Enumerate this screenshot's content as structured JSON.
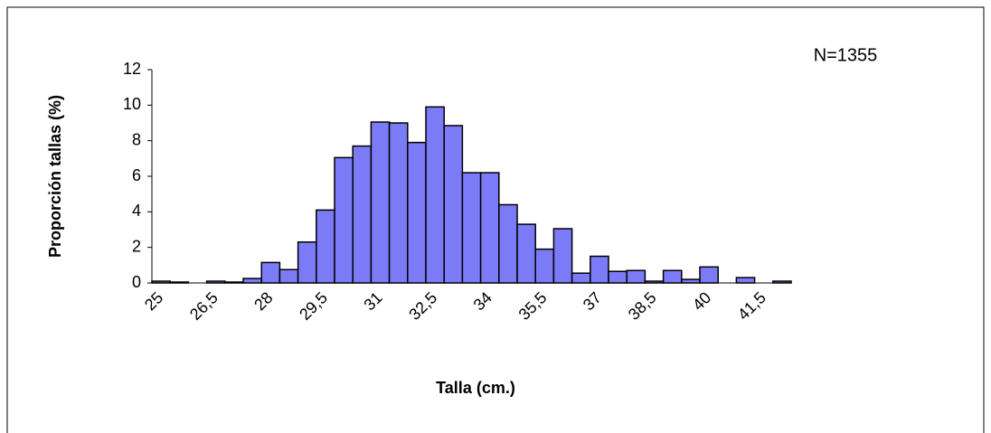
{
  "chart_data": {
    "type": "bar",
    "annotation": "N=1355",
    "y_label": "Proporción tallas (%)",
    "x_label": "Talla (cm.)",
    "categories": [
      "25",
      null,
      null,
      "26,5",
      null,
      null,
      "28",
      null,
      null,
      "29,5",
      null,
      null,
      "31",
      null,
      null,
      "32,5",
      null,
      null,
      "34",
      null,
      null,
      "35,5",
      null,
      null,
      "37",
      null,
      null,
      "38,5",
      null,
      null,
      "40",
      null,
      null,
      "41,5",
      null
    ],
    "values": [
      0.1,
      0.05,
      0,
      0.1,
      0.05,
      0.25,
      1.15,
      0.75,
      2.3,
      4.1,
      7.05,
      7.7,
      9.05,
      9.0,
      7.9,
      9.9,
      8.85,
      6.2,
      6.2,
      4.4,
      3.3,
      1.9,
      3.05,
      0.55,
      1.5,
      0.65,
      0.7,
      0.1,
      0.7,
      0.2,
      0.9,
      0,
      0.3,
      0,
      0.1
    ],
    "color": "#7b7bf7",
    "ylim": [
      0,
      12
    ],
    "yticks": [
      0,
      2,
      4,
      6,
      8,
      10,
      12
    ],
    "grid": false
  }
}
